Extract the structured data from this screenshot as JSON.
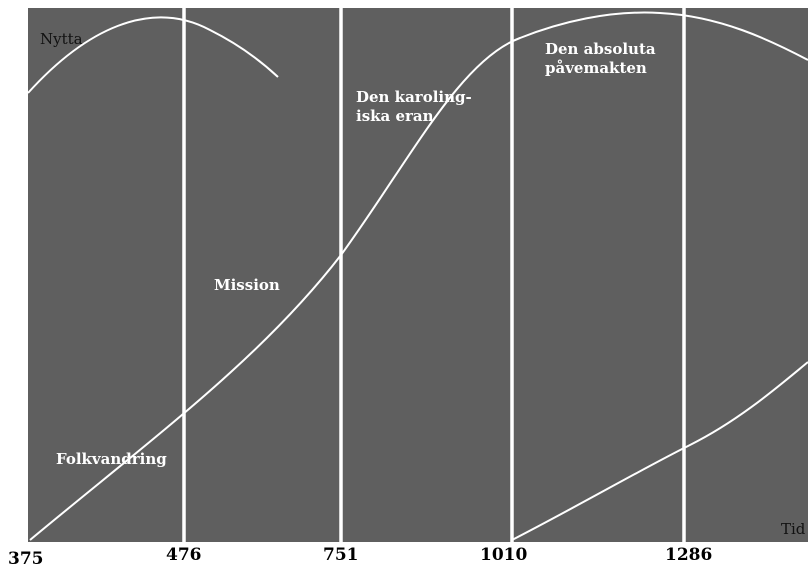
{
  "diagram": {
    "y_axis_label": "Nytta",
    "x_axis_label": "Tid",
    "phases": [
      {
        "label_lines": [
          "Folkvandring"
        ]
      },
      {
        "label_lines": [
          "Mission"
        ]
      },
      {
        "label_lines": [
          "Den karoling-",
          "iska eran"
        ]
      },
      {
        "label_lines": [
          "Den absoluta",
          "påvemakten"
        ]
      }
    ],
    "ticks": [
      "375",
      "476",
      "751",
      "1010",
      "1286"
    ],
    "colors": {
      "panel": "#5f5f5f",
      "lines": "#ffffff",
      "page": "#ffffff"
    }
  }
}
